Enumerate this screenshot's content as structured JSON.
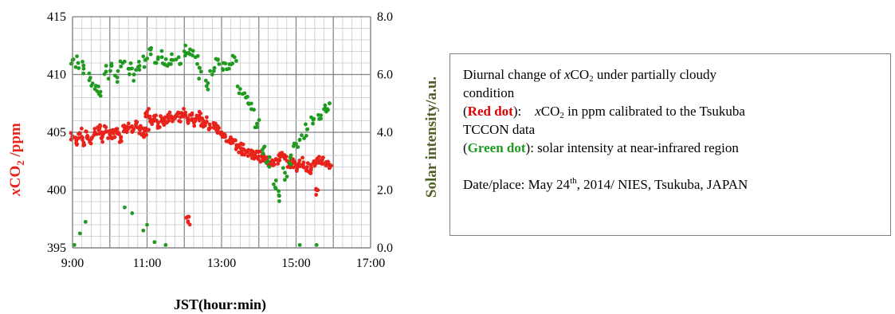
{
  "chart_data": {
    "type": "scatter",
    "xlabel": "JST(hour:min)",
    "ylabel_left": "xCO2 /ppm",
    "ylabel_right": "Solar intensity/a.u.",
    "x_ticks": [
      "9:00",
      "11:00",
      "13:00",
      "15:00",
      "17:00"
    ],
    "xlim": [
      9,
      17
    ],
    "y_left_ticks": [
      "395",
      "400",
      "405",
      "410",
      "415"
    ],
    "ylim_left": [
      395,
      415
    ],
    "y_right_ticks": [
      "0.0",
      "2.0",
      "4.0",
      "6.0",
      "8.0"
    ],
    "ylim_right": [
      0,
      8
    ],
    "grid": true,
    "series": [
      {
        "axis": "left",
        "color": "#e8231b",
        "points": [
          [
            9.0,
            404.6
          ],
          [
            9.1,
            404.3
          ],
          [
            9.2,
            404.9
          ],
          [
            9.3,
            404.1
          ],
          [
            9.4,
            404.7
          ],
          [
            9.5,
            404.4
          ],
          [
            9.6,
            405.0
          ],
          [
            9.7,
            405.2
          ],
          [
            9.8,
            404.6
          ],
          [
            9.9,
            405.1
          ],
          [
            10.0,
            404.8
          ],
          [
            10.1,
            404.9
          ],
          [
            10.2,
            405.3
          ],
          [
            10.3,
            404.6
          ],
          [
            10.4,
            405.2
          ],
          [
            10.5,
            405.4
          ],
          [
            10.6,
            405.1
          ],
          [
            10.7,
            405.5
          ],
          [
            10.8,
            405.3
          ],
          [
            10.9,
            404.9
          ],
          [
            11.0,
            405.2
          ],
          [
            11.1,
            406.0
          ],
          [
            11.2,
            406.4
          ],
          [
            11.3,
            405.8
          ],
          [
            11.4,
            406.2
          ],
          [
            11.5,
            405.9
          ],
          [
            11.6,
            406.3
          ],
          [
            11.7,
            406.1
          ],
          [
            11.8,
            406.5
          ],
          [
            11.9,
            406.3
          ],
          [
            12.0,
            406.6
          ],
          [
            12.1,
            406.2
          ],
          [
            12.2,
            406.5
          ],
          [
            12.3,
            406.0
          ],
          [
            12.4,
            406.4
          ],
          [
            12.5,
            405.8
          ],
          [
            12.6,
            405.9
          ],
          [
            12.7,
            405.4
          ],
          [
            12.8,
            405.6
          ],
          [
            12.9,
            405.2
          ],
          [
            13.0,
            405.0
          ],
          [
            13.1,
            404.6
          ],
          [
            13.2,
            404.3
          ],
          [
            13.3,
            404.1
          ],
          [
            13.4,
            403.9
          ],
          [
            13.5,
            403.7
          ],
          [
            13.6,
            403.5
          ],
          [
            13.7,
            403.3
          ],
          [
            13.8,
            403.2
          ],
          [
            13.9,
            403.0
          ],
          [
            14.0,
            402.9
          ],
          [
            14.1,
            402.8
          ],
          [
            14.2,
            402.6
          ],
          [
            14.3,
            402.4
          ],
          [
            14.4,
            402.5
          ],
          [
            14.5,
            402.6
          ],
          [
            14.6,
            402.9
          ],
          [
            14.7,
            402.7
          ],
          [
            14.8,
            402.4
          ],
          [
            14.9,
            402.3
          ],
          [
            15.0,
            402.1
          ],
          [
            15.1,
            402.2
          ],
          [
            15.2,
            402.4
          ],
          [
            15.3,
            402.0
          ],
          [
            15.4,
            401.8
          ],
          [
            15.5,
            402.1
          ],
          [
            15.6,
            402.5
          ],
          [
            15.7,
            402.6
          ],
          [
            15.8,
            402.4
          ],
          [
            15.9,
            402.2
          ],
          [
            12.1,
            397.3
          ],
          [
            11.0,
            406.8
          ],
          [
            15.56,
            400.0
          ]
        ]
      },
      {
        "axis": "right",
        "color": "#1f9a1f",
        "points": [
          [
            9.0,
            6.5
          ],
          [
            9.15,
            6.4
          ],
          [
            9.3,
            6.2
          ],
          [
            9.45,
            5.8
          ],
          [
            9.6,
            5.5
          ],
          [
            9.75,
            5.4
          ],
          [
            9.9,
            6.1
          ],
          [
            10.05,
            6.3
          ],
          [
            10.2,
            5.9
          ],
          [
            10.35,
            6.4
          ],
          [
            10.5,
            6.2
          ],
          [
            10.65,
            6.0
          ],
          [
            10.8,
            6.3
          ],
          [
            10.95,
            6.5
          ],
          [
            11.1,
            6.7
          ],
          [
            11.25,
            6.4
          ],
          [
            11.4,
            6.6
          ],
          [
            11.55,
            6.3
          ],
          [
            11.7,
            6.5
          ],
          [
            11.85,
            6.6
          ],
          [
            12.0,
            6.8
          ],
          [
            12.15,
            6.7
          ],
          [
            12.3,
            6.6
          ],
          [
            12.45,
            6.1
          ],
          [
            12.6,
            5.6
          ],
          [
            12.75,
            6.0
          ],
          [
            12.9,
            6.5
          ],
          [
            13.05,
            6.4
          ],
          [
            13.2,
            6.2
          ],
          [
            13.35,
            6.6
          ],
          [
            13.5,
            5.5
          ],
          [
            13.65,
            5.2
          ],
          [
            13.8,
            4.8
          ],
          [
            13.95,
            4.3
          ],
          [
            14.1,
            3.4
          ],
          [
            14.25,
            3.0
          ],
          [
            14.4,
            2.2
          ],
          [
            14.55,
            1.8
          ],
          [
            14.7,
            2.6
          ],
          [
            14.85,
            3.1
          ],
          [
            15.0,
            3.6
          ],
          [
            15.15,
            3.9
          ],
          [
            15.3,
            4.1
          ],
          [
            15.45,
            4.3
          ],
          [
            15.6,
            4.6
          ],
          [
            15.75,
            4.8
          ],
          [
            15.9,
            5.0
          ],
          [
            9.05,
            0.1
          ],
          [
            9.2,
            0.5
          ],
          [
            9.35,
            0.9
          ],
          [
            10.4,
            1.4
          ],
          [
            10.6,
            1.2
          ],
          [
            10.9,
            0.6
          ],
          [
            11.0,
            0.8
          ],
          [
            11.2,
            0.2
          ],
          [
            11.5,
            0.1
          ],
          [
            15.1,
            0.1
          ],
          [
            15.55,
            0.1
          ]
        ]
      }
    ],
    "note": {
      "line1": "Diurnal change of xCO₂ under partially cloudy",
      "line2": "condition",
      "red_label": "Red dot",
      "red_text": "xCO₂ in ppm calibrated to the Tsukuba",
      "line4": "TCCON data",
      "green_label": "Green dot",
      "green_text": "): solar intensity at near-infrared region",
      "date_text": "Date/place: May 24th, 2014/ NIES, Tsukuba, JAPAN"
    }
  }
}
